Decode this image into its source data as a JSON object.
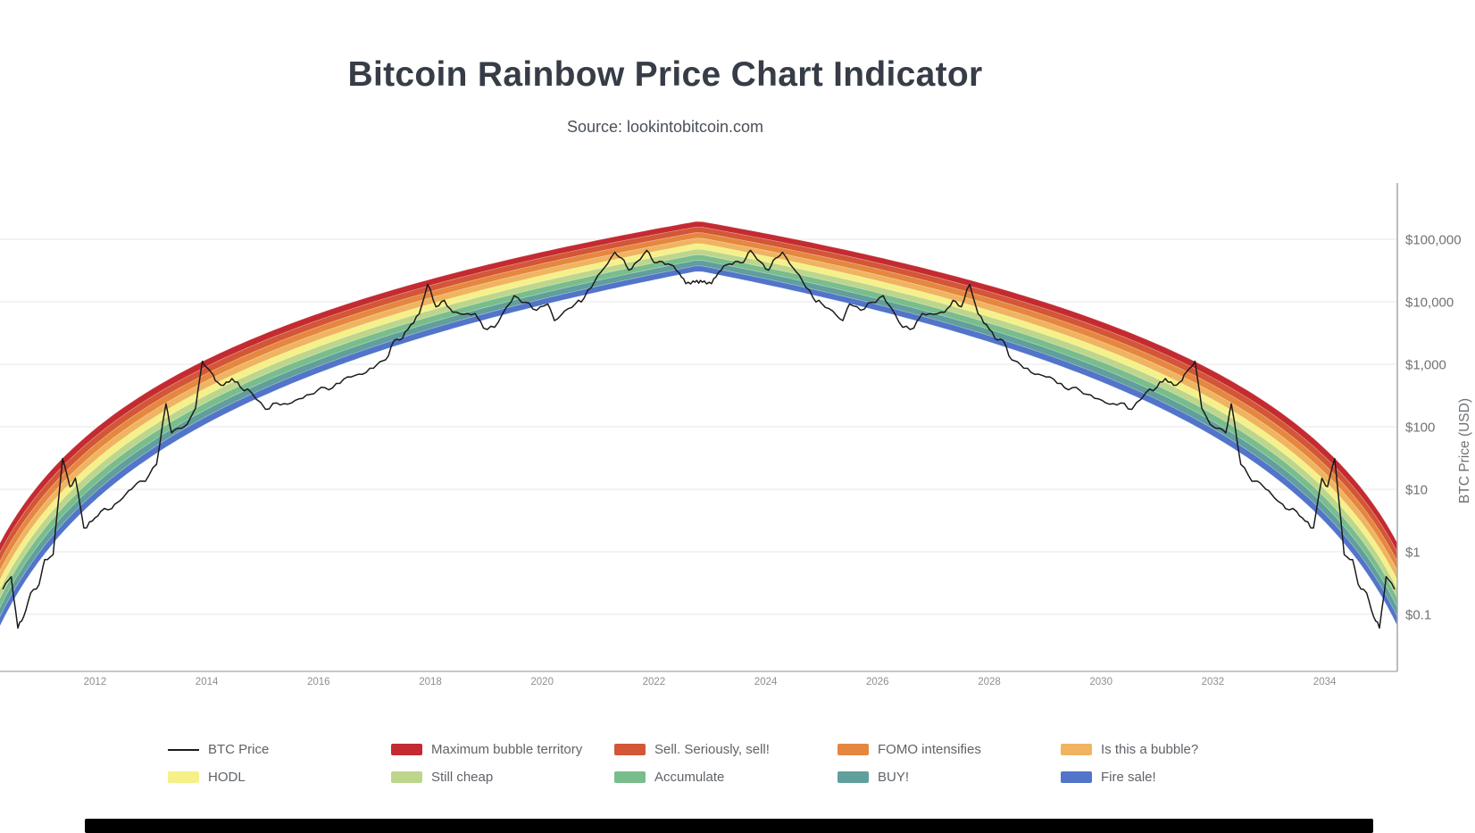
{
  "header": {
    "title": "Bitcoin Rainbow Price Chart Indicator",
    "source": "Source: lookintobitcoin.com"
  },
  "chart_data": {
    "type": "area",
    "title": "Bitcoin Rainbow Price Chart Indicator",
    "subtitle": "Source: lookintobitcoin.com",
    "xlabel": "",
    "ylabel": "BTC Price (USD)",
    "y_scale": "log",
    "grid": true,
    "y_ticks": [
      "$100,000",
      "$10,000",
      "$1,000",
      "$100",
      "$10",
      "$1",
      "$0.1"
    ],
    "y_tick_values": [
      100000,
      10000,
      1000,
      100,
      10,
      1,
      0.1
    ],
    "x_ticks": [
      2012,
      2014,
      2016,
      2018,
      2020,
      2022,
      2024,
      2026,
      2028,
      2030,
      2032,
      2034
    ],
    "x_range": [
      2010.3,
      2035.3
    ],
    "ylim_log10": [
      -1.9,
      5.95
    ],
    "bands_top_to_bottom": [
      {
        "label": "Maximum bubble territory",
        "color": "#c42b31"
      },
      {
        "label": "Sell. Seriously, sell!",
        "color": "#d35636"
      },
      {
        "label": "FOMO intensifies",
        "color": "#e5873f"
      },
      {
        "label": "Is this a bubble?",
        "color": "#f0b460"
      },
      {
        "label": "HODL",
        "color": "#f5f188"
      },
      {
        "label": "Still cheap",
        "color": "#bdd68c"
      },
      {
        "label": "Accumulate",
        "color": "#79bd8c"
      },
      {
        "label": "BUY!",
        "color": "#609f9b"
      },
      {
        "label": "Fire sale!",
        "color": "#5274c9"
      }
    ],
    "band_model": {
      "comment": "rainbow arc, mirrored around mirror_year: log10(top)=slope*ln(years_since_genesis)+intercept; stack thickness (decades) = t_intercept + t_slope*ln(years_since_genesis); 9 equal bands",
      "genesis_year": 2009.0,
      "mirror_year": 2022.8,
      "slope": 2.18,
      "intercept": -0.43,
      "t_intercept": 1.386,
      "t_slope": -0.224
    },
    "legend": [
      {
        "label": "BTC Price",
        "color": "#1b1b1b",
        "type": "line"
      },
      {
        "label": "Maximum bubble territory",
        "color": "#c42b31",
        "type": "box"
      },
      {
        "label": "Sell. Seriously, sell!",
        "color": "#d35636",
        "type": "box"
      },
      {
        "label": "FOMO intensifies",
        "color": "#e5873f",
        "type": "box"
      },
      {
        "label": "Is this a bubble?",
        "color": "#f0b460",
        "type": "box"
      },
      {
        "label": "HODL",
        "color": "#f5f188",
        "type": "box"
      },
      {
        "label": "Still cheap",
        "color": "#bdd68c",
        "type": "box"
      },
      {
        "label": "Accumulate",
        "color": "#79bd8c",
        "type": "box"
      },
      {
        "label": "BUY!",
        "color": "#609f9b",
        "type": "box"
      },
      {
        "label": "Fire sale!",
        "color": "#5274c9",
        "type": "box"
      }
    ],
    "btc_price_series": {
      "name": "BTC Price",
      "mirror_year": 2022.8,
      "mirrored_right_half": true,
      "points": [
        [
          2010.35,
          0.25
        ],
        [
          2010.5,
          0.4
        ],
        [
          2010.62,
          0.06
        ],
        [
          2010.72,
          0.09
        ],
        [
          2010.85,
          0.22
        ],
        [
          2011.0,
          0.3
        ],
        [
          2011.1,
          0.75
        ],
        [
          2011.25,
          0.9
        ],
        [
          2011.42,
          31
        ],
        [
          2011.55,
          11
        ],
        [
          2011.65,
          15
        ],
        [
          2011.8,
          2.4
        ],
        [
          2011.95,
          3.1
        ],
        [
          2012.1,
          4.4
        ],
        [
          2012.3,
          4.9
        ],
        [
          2012.45,
          6.6
        ],
        [
          2012.6,
          9.5
        ],
        [
          2012.75,
          12.5
        ],
        [
          2012.9,
          13.4
        ],
        [
          2013.1,
          25
        ],
        [
          2013.27,
          233
        ],
        [
          2013.37,
          80
        ],
        [
          2013.5,
          95
        ],
        [
          2013.65,
          110
        ],
        [
          2013.8,
          200
        ],
        [
          2013.92,
          1120
        ],
        [
          2014.05,
          800
        ],
        [
          2014.15,
          550
        ],
        [
          2014.3,
          460
        ],
        [
          2014.45,
          590
        ],
        [
          2014.6,
          430
        ],
        [
          2014.8,
          350
        ],
        [
          2015.05,
          190
        ],
        [
          2015.25,
          240
        ],
        [
          2015.45,
          230
        ],
        [
          2015.65,
          280
        ],
        [
          2015.85,
          330
        ],
        [
          2016.05,
          430
        ],
        [
          2016.25,
          420
        ],
        [
          2016.45,
          580
        ],
        [
          2016.65,
          660
        ],
        [
          2016.85,
          740
        ],
        [
          2017.05,
          1000
        ],
        [
          2017.2,
          1180
        ],
        [
          2017.35,
          2400
        ],
        [
          2017.5,
          2600
        ],
        [
          2017.65,
          4300
        ],
        [
          2017.8,
          6400
        ],
        [
          2017.95,
          19000
        ],
        [
          2018.1,
          8300
        ],
        [
          2018.25,
          10500
        ],
        [
          2018.4,
          6800
        ],
        [
          2018.6,
          6300
        ],
        [
          2018.8,
          6500
        ],
        [
          2018.95,
          3800
        ],
        [
          2019.15,
          3900
        ],
        [
          2019.35,
          7900
        ],
        [
          2019.5,
          12500
        ],
        [
          2019.7,
          9800
        ],
        [
          2019.9,
          7300
        ],
        [
          2020.1,
          9200
        ],
        [
          2020.22,
          5000
        ],
        [
          2020.4,
          7100
        ],
        [
          2020.6,
          9400
        ],
        [
          2020.75,
          11500
        ],
        [
          2020.95,
          22000
        ],
        [
          2021.1,
          34000
        ],
        [
          2021.3,
          62000
        ],
        [
          2021.42,
          50000
        ],
        [
          2021.55,
          32000
        ],
        [
          2021.7,
          44000
        ],
        [
          2021.87,
          66500
        ],
        [
          2022.0,
          42500
        ],
        [
          2022.15,
          44000
        ],
        [
          2022.3,
          39000
        ],
        [
          2022.45,
          29000
        ],
        [
          2022.57,
          19500
        ],
        [
          2022.7,
          21500
        ],
        [
          2022.8,
          19800
        ]
      ]
    },
    "colors": {
      "price_line": "#1b1b1b",
      "grid_line": "#ececec",
      "axis_line": "#a3a7ab",
      "tick_label": "#6e7276",
      "x_tick_label": "#8c8f93"
    }
  },
  "footer": {
    "bar_color": "#000000"
  }
}
